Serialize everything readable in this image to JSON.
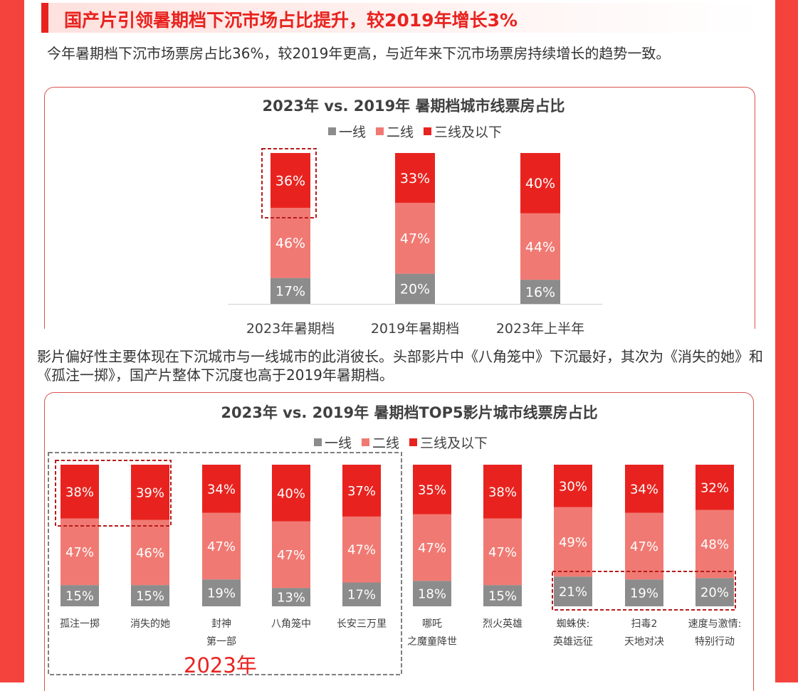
{
  "colors": {
    "tier1": "#8c8c8c",
    "tier2": "#f07a73",
    "tier3": "#e8231f",
    "accent": "#e8231f"
  },
  "header": {
    "title": "国产片引领暑期档下沉市场占比提升，较2019年增长3%"
  },
  "intro_text": "今年暑期档下沉市场票房占比36%，较2019年更高，与近年来下沉市场票房持续增长的趋势一致。",
  "middle_text": "影片偏好性主要体现在下沉城市与一线城市的此消彼长。头部影片中《八角笼中》下沉最好，其次为《消失的她》和《孤注一掷》，国产片整体下沉度也高于2019年暑期档。",
  "legend": [
    "一线",
    "二线",
    "三线及以下"
  ],
  "year_label": "2023年",
  "chart_data": [
    {
      "type": "bar",
      "stacked": true,
      "title": "2023年 vs. 2019年 暑期档城市线票房占比",
      "categories": [
        "2023年暑期档",
        "2019年暑期档",
        "2023年上半年"
      ],
      "series": [
        {
          "name": "一线",
          "values": [
            17,
            20,
            16
          ]
        },
        {
          "name": "二线",
          "values": [
            46,
            47,
            44
          ]
        },
        {
          "name": "三线及以下",
          "values": [
            36,
            33,
            40
          ]
        }
      ],
      "labels": [
        [
          "17%",
          "46%",
          "36%"
        ],
        [
          "20%",
          "47%",
          "33%"
        ],
        [
          "16%",
          "44%",
          "40%"
        ]
      ],
      "legend_position": "top"
    },
    {
      "type": "bar",
      "stacked": true,
      "title": "2023年 vs. 2019年 暑期档TOP5影片城市线票房占比",
      "categories": [
        [
          "孤注一掷"
        ],
        [
          "消失的她"
        ],
        [
          "封神",
          "第一部"
        ],
        [
          "八角笼中"
        ],
        [
          "长安三万里"
        ],
        [
          "哪吒",
          "之魔童降世"
        ],
        [
          "烈火英雄"
        ],
        [
          "蜘蛛侠:",
          "英雄远征"
        ],
        [
          "扫毒2",
          "天地对决"
        ],
        [
          "速度与激情:",
          "特别行动"
        ]
      ],
      "series": [
        {
          "name": "一线",
          "values": [
            15,
            15,
            19,
            13,
            17,
            18,
            15,
            21,
            19,
            20
          ]
        },
        {
          "name": "二线",
          "values": [
            47,
            46,
            47,
            47,
            47,
            47,
            47,
            49,
            47,
            48
          ]
        },
        {
          "name": "三线及以下",
          "values": [
            38,
            39,
            34,
            40,
            37,
            35,
            38,
            30,
            34,
            32
          ]
        }
      ],
      "labels": [
        [
          "15%",
          "47%",
          "38%"
        ],
        [
          "15%",
          "46%",
          "39%"
        ],
        [
          "19%",
          "47%",
          "34%"
        ],
        [
          "13%",
          "47%",
          "40%"
        ],
        [
          "17%",
          "47%",
          "37%"
        ],
        [
          "18%",
          "47%",
          "35%"
        ],
        [
          "15%",
          "47%",
          "38%"
        ],
        [
          "21%",
          "49%",
          "30%"
        ],
        [
          "19%",
          "47%",
          "34%"
        ],
        [
          "20%",
          "48%",
          "32%"
        ]
      ],
      "legend_position": "top"
    }
  ]
}
